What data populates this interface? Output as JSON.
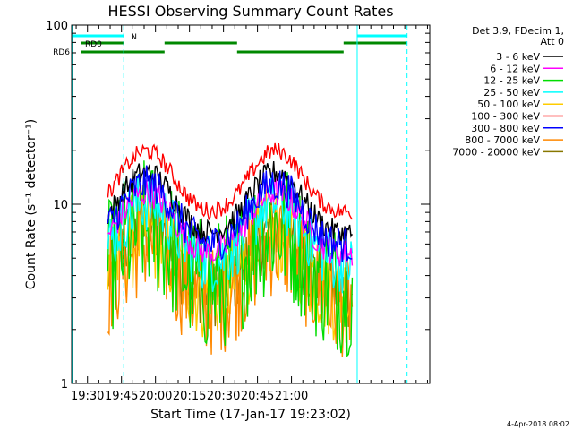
{
  "chart_data": {
    "type": "line",
    "title": "HESSI Observing Summary Count Rates",
    "xlabel": "Start Time (17-Jan-17 19:23:02)",
    "ylabel": "Count Rate (s⁻¹ detector⁻¹)",
    "yscale": "log",
    "ylim": [
      1,
      100
    ],
    "xlim_minutes_after_1923": [
      0,
      158
    ],
    "x_ticks": [
      "19:30",
      "19:45",
      "20:00",
      "20:15",
      "20:30",
      "20:45",
      "21:00"
    ],
    "y_ticks": [
      "1",
      "10",
      "100"
    ],
    "legend_title": [
      "Det 3,9, FDecim 1,",
      "Att 0"
    ],
    "legend_position": "right",
    "series": [
      {
        "name": "3 - 6 keV",
        "color": "#000000",
        "base": 11,
        "noise": 0.1
      },
      {
        "name": "6 - 12 keV",
        "color": "#ff00ff",
        "base": 8.5,
        "noise": 0.12
      },
      {
        "name": "12 - 25 keV",
        "color": "#00dd00",
        "base": 5.5,
        "noise": 0.55
      },
      {
        "name": "25 - 50 keV",
        "color": "#00ffff",
        "base": 7.5,
        "noise": 0.25
      },
      {
        "name": "50 - 100 keV",
        "color": "#ffcc00",
        "base": 5,
        "noise": 0.4
      },
      {
        "name": "100 - 300 keV",
        "color": "#ff0000",
        "base": 14.5,
        "noise": 0.07
      },
      {
        "name": "300 - 800 keV",
        "color": "#0000ff",
        "base": 9.5,
        "noise": 0.15
      },
      {
        "name": "800 - 7000 keV",
        "color": "#ff8800",
        "base": 4.5,
        "noise": 0.45
      },
      {
        "name": "7000 - 20000 keV",
        "color": "#887700",
        "base": 5.2,
        "noise": 0.3
      }
    ],
    "state_bars": [
      {
        "label": "N",
        "color": "#00ffff",
        "segments": [
          [
            0,
            23
          ],
          [
            126,
            148
          ]
        ]
      },
      {
        "label": "RD0",
        "color": "#008800",
        "segments": [
          [
            4,
            23
          ],
          [
            41,
            73
          ],
          [
            120,
            148
          ]
        ]
      },
      {
        "label": "RD6",
        "color": "#008800",
        "segments": [
          [
            4,
            41
          ],
          [
            73,
            120
          ]
        ]
      }
    ],
    "vertical_markers": [
      {
        "minute": 23,
        "style": "dashed",
        "color": "#00ffff"
      },
      {
        "minute": 126,
        "style": "solid",
        "color": "#00ffff"
      },
      {
        "minute": 148,
        "style": "dashed",
        "color": "#00ffff"
      }
    ]
  },
  "footer_date": "4-Apr-2018 08:02"
}
